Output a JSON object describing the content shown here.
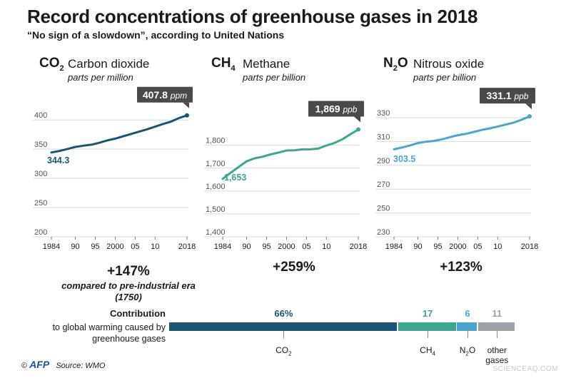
{
  "header": {
    "title": "Record concentrations of greenhouse gases in 2018",
    "subtitle": "“No sign of a slowdown”, according to United Nations"
  },
  "panels": [
    {
      "formula_main": "CO",
      "formula_sub": "2",
      "name": "Carbon dioxide",
      "unit": "parts per million",
      "start_label": "344.3",
      "end_label": "407.8",
      "end_unit": "ppm",
      "change": "+147%",
      "change_note": "compared to pre-industrial era (1750)"
    },
    {
      "formula_main": "CH",
      "formula_sub": "4",
      "name": "Methane",
      "unit": "parts per billion",
      "start_label": "1,653",
      "end_label": "1,869",
      "end_unit": "ppb",
      "change": "+259%",
      "change_note": ""
    },
    {
      "formula_main": "N",
      "formula_sub": "2",
      "formula_tail": "O",
      "name": "Nitrous oxide",
      "unit": "parts per billion",
      "start_label": "303.5",
      "end_label": "331.1",
      "end_unit": "ppb",
      "change": "+123%",
      "change_note": ""
    }
  ],
  "colors": {
    "co2": "#1b5575",
    "ch4": "#3aa88e",
    "n2o": "#4aa4cf",
    "other": "#9aa3a8",
    "grid": "#d9d9d9",
    "callout": "#4a4a4a"
  },
  "chart_data": [
    {
      "type": "line",
      "series": [
        {
          "x": [
            1984,
            1986,
            1988,
            1990,
            1992,
            1994,
            1996,
            1998,
            2000,
            2002,
            2004,
            2006,
            2008,
            2010,
            2012,
            2014,
            2016,
            2018
          ],
          "values": [
            344.3,
            346.9,
            350.3,
            353.8,
            355.9,
            357.6,
            360.9,
            365.0,
            368.0,
            372.0,
            376.0,
            380.0,
            384.0,
            388.5,
            393.1,
            397.2,
            403.3,
            407.8
          ]
        }
      ],
      "ylim": [
        200,
        410
      ],
      "yticks": [
        200,
        250,
        300,
        350,
        400
      ],
      "ytick_labels": [
        "200",
        "250",
        "300",
        "350",
        "400"
      ],
      "xticks": [
        1984,
        1990,
        1995,
        2000,
        2005,
        2010,
        2018
      ],
      "xtick_labels": [
        "1984",
        "90",
        "95",
        "2000",
        "05",
        "10",
        "2018"
      ]
    },
    {
      "type": "line",
      "series": [
        {
          "x": [
            1984,
            1986,
            1988,
            1990,
            1992,
            1994,
            1996,
            1998,
            2000,
            2002,
            2004,
            2006,
            2008,
            2010,
            2012,
            2014,
            2016,
            2018
          ],
          "values": [
            1653,
            1680,
            1705,
            1730,
            1743,
            1750,
            1760,
            1768,
            1777,
            1778,
            1782,
            1782,
            1786,
            1799,
            1810,
            1826,
            1848,
            1869
          ]
        }
      ],
      "ylim": [
        1400,
        1880
      ],
      "yticks": [
        1400,
        1500,
        1600,
        1700,
        1800
      ],
      "ytick_labels": [
        "1,400",
        "1,500",
        "1,600",
        "1,700",
        "1,800"
      ],
      "xticks": [
        1984,
        1990,
        1995,
        2000,
        2005,
        2010,
        2018
      ],
      "xtick_labels": [
        "1984",
        "90",
        "95",
        "2000",
        "05",
        "10",
        "2018"
      ]
    },
    {
      "type": "line",
      "series": [
        {
          "x": [
            1984,
            1986,
            1988,
            1990,
            1992,
            1994,
            1996,
            1998,
            2000,
            2002,
            2004,
            2006,
            2008,
            2010,
            2012,
            2014,
            2016,
            2018
          ],
          "values": [
            303.5,
            305.0,
            306.7,
            308.7,
            309.8,
            310.5,
            311.8,
            313.6,
            315.3,
            316.4,
            318.0,
            319.7,
            321.0,
            322.6,
            324.2,
            325.8,
            328.3,
            331.1
          ]
        }
      ],
      "ylim": [
        230,
        333
      ],
      "yticks": [
        230,
        250,
        270,
        290,
        310,
        330
      ],
      "ytick_labels": [
        "230",
        "250",
        "270",
        "290",
        "310",
        "330"
      ],
      "xticks": [
        1984,
        1990,
        1995,
        2000,
        2005,
        2010,
        2018
      ],
      "xtick_labels": [
        "1984",
        "90",
        "95",
        "2000",
        "05",
        "10",
        "2018"
      ]
    },
    {
      "type": "bar",
      "categories": [
        "CO2",
        "CH4",
        "N2O",
        "other gases"
      ],
      "values": [
        66,
        17,
        6,
        11
      ],
      "value_labels": [
        "66%",
        "17",
        "6",
        "11"
      ]
    }
  ],
  "contribution": {
    "heading": "Contribution",
    "description": "to global warming caused by greenhouse gases",
    "labels": [
      {
        "main": "CO",
        "sub": "2",
        "tail": ""
      },
      {
        "main": "CH",
        "sub": "4",
        "tail": ""
      },
      {
        "main": "N",
        "sub": "2",
        "tail": "O"
      },
      {
        "main": "other gases",
        "sub": "",
        "tail": ""
      }
    ]
  },
  "footer": {
    "copyright": "©",
    "agency": "AFP",
    "source": "Source: WMO"
  },
  "watermark": "SCIENCEAQ.COM"
}
